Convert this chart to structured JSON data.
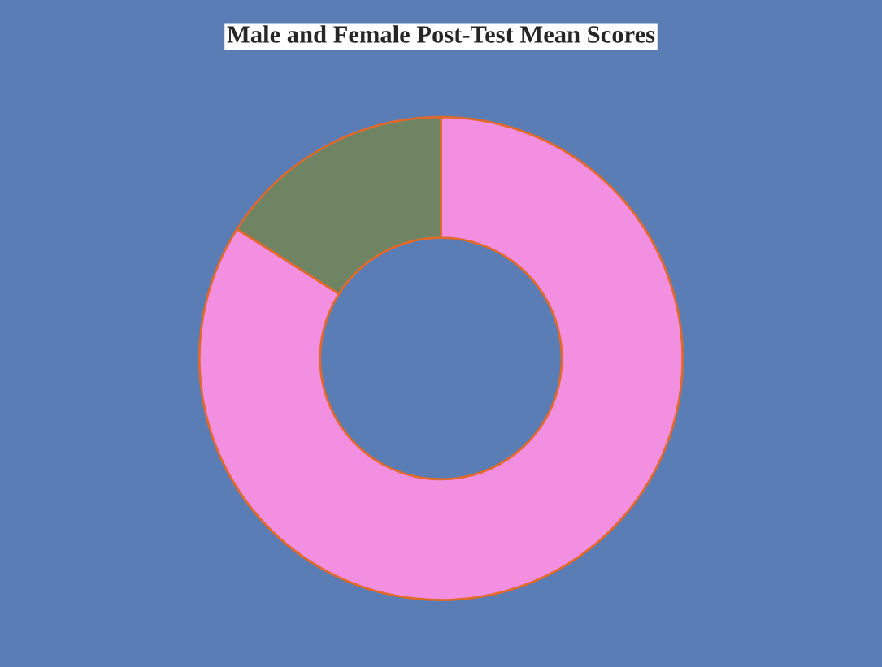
{
  "chart_data": {
    "type": "donut",
    "title": "Male and Female Post-Test Mean Scores",
    "categories": [
      null,
      null
    ],
    "values": [
      84,
      16
    ],
    "colors": [
      "#f28fe0",
      "#6e8462"
    ]
  }
}
